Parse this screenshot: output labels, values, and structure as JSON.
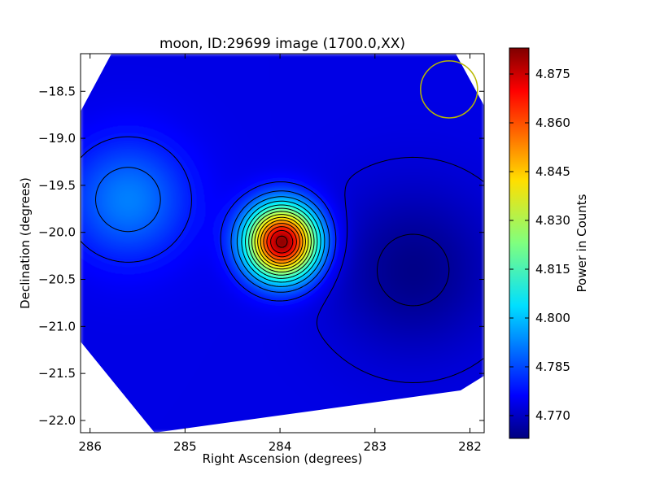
{
  "chart_data": {
    "type": "heatmap",
    "title": "moon, ID:29699 image (1700.0,XX)",
    "xlabel": "Right Ascension (degrees)",
    "ylabel": "Declination (degrees)",
    "xlim": [
      286.1,
      281.85
    ],
    "ylim": [
      -22.13,
      -18.1
    ],
    "x_ticks": [
      286,
      285,
      284,
      283,
      282
    ],
    "y_ticks": [
      -18.5,
      -19.0,
      -19.5,
      -20.0,
      -20.5,
      -21.0,
      -21.5,
      -22.0
    ],
    "x_tick_labels": [
      "286",
      "285",
      "284",
      "283",
      "282"
    ],
    "y_tick_labels": [
      "−18.5",
      "−19.0",
      "−19.5",
      "−20.0",
      "−20.5",
      "−21.0",
      "−21.5",
      "−22.0"
    ],
    "colorbar": {
      "label": "Power in Counts",
      "min": 4.763,
      "max": 4.883,
      "ticks": [
        4.77,
        4.785,
        4.8,
        4.815,
        4.83,
        4.845,
        4.86,
        4.875
      ],
      "tick_labels": [
        "4.770",
        "4.785",
        "4.800",
        "4.815",
        "4.830",
        "4.845",
        "4.860",
        "4.875"
      ],
      "colormap": "jet"
    },
    "peak": {
      "ra": 283.98,
      "dec": -20.1,
      "value": 4.882
    },
    "background_level": 4.775,
    "secondary_features": [
      {
        "ra": 285.6,
        "dec": -19.65,
        "value": 4.793,
        "kind": "local maximum"
      },
      {
        "ra": 282.6,
        "dec": -20.4,
        "value": 4.764,
        "kind": "local minimum"
      }
    ],
    "grid": false,
    "annotations": [
      {
        "type": "circle",
        "ra": 282.22,
        "dec": -18.48,
        "radius_deg": 0.3,
        "color": "#b8b800"
      }
    ],
    "colors": {
      "contour": "#000000",
      "annotation_circle": "#b8b800"
    }
  }
}
